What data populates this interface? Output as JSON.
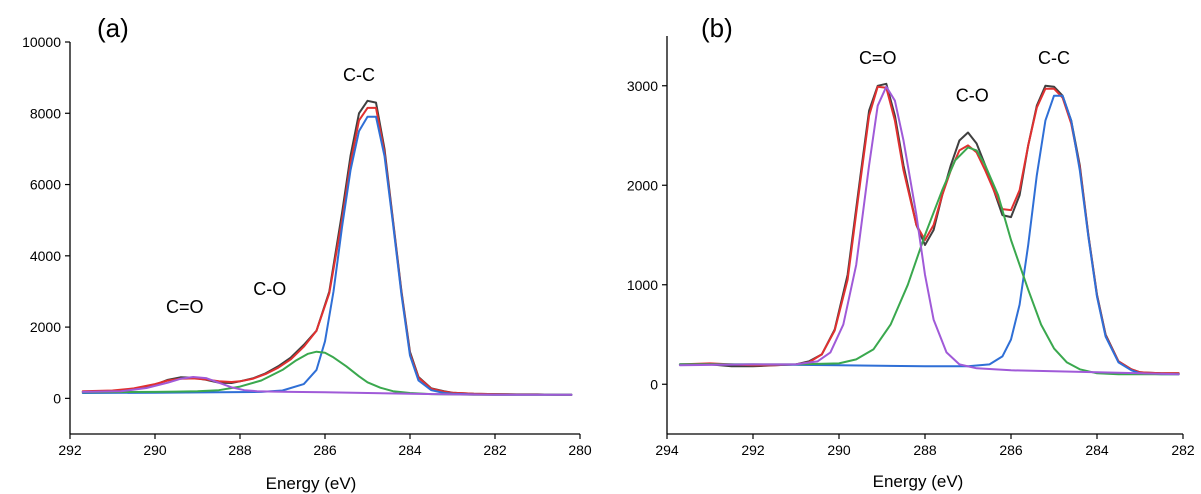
{
  "chart_data": [
    {
      "type": "line",
      "panel_label": "(a)",
      "xlabel": "Energy (eV)",
      "ylabel": "",
      "xlim": [
        292,
        280
      ],
      "ylim": [
        -1000,
        10000
      ],
      "x_reversed": true,
      "xticks": [
        292,
        290,
        288,
        286,
        284,
        282,
        280
      ],
      "yticks": [
        0,
        2000,
        4000,
        6000,
        8000,
        10000
      ],
      "annotations": [
        {
          "text": "C=O",
          "x": 289.3,
          "y": 2400
        },
        {
          "text": "C-O",
          "x": 287.3,
          "y": 2900
        },
        {
          "text": "C-C",
          "x": 285.2,
          "y": 8900
        }
      ],
      "series": [
        {
          "color": "#404040",
          "x": [
            291.7,
            291,
            290.5,
            290,
            289.7,
            289.4,
            289.1,
            288.8,
            288.5,
            288.2,
            288,
            287.7,
            287.4,
            287.1,
            286.8,
            286.5,
            286.2,
            285.9,
            285.6,
            285.4,
            285.2,
            285,
            284.8,
            284.6,
            284.4,
            284.2,
            284,
            283.8,
            283.5,
            283.2,
            283,
            282.5,
            282,
            281.5,
            281,
            280.5,
            280.2
          ],
          "y": [
            180,
            200,
            260,
            380,
            520,
            590,
            580,
            520,
            440,
            430,
            480,
            560,
            700,
            900,
            1150,
            1500,
            1900,
            3000,
            5200,
            6800,
            8000,
            8350,
            8300,
            7000,
            5000,
            3000,
            1300,
            600,
            280,
            200,
            160,
            130,
            120,
            110,
            110,
            100,
            100
          ]
        },
        {
          "color": "#e03030",
          "x": [
            291.7,
            291,
            290.5,
            290,
            289.7,
            289.4,
            289.1,
            288.8,
            288.5,
            288.2,
            288,
            287.7,
            287.4,
            287.1,
            286.8,
            286.5,
            286.2,
            285.9,
            285.6,
            285.4,
            285.2,
            285,
            284.8,
            284.6,
            284.4,
            284.2,
            284,
            283.8,
            283.5,
            283.2,
            283,
            282.5,
            282,
            281.5,
            281,
            280.5,
            280.2
          ],
          "y": [
            200,
            220,
            280,
            400,
            500,
            550,
            560,
            530,
            480,
            460,
            480,
            550,
            680,
            860,
            1100,
            1450,
            1900,
            2950,
            5000,
            6600,
            7800,
            8150,
            8150,
            6900,
            4950,
            2950,
            1250,
            580,
            270,
            190,
            160,
            130,
            120,
            110,
            110,
            100,
            100
          ]
        },
        {
          "color": "#2f6fd6",
          "x": [
            291.7,
            290,
            288.5,
            287.5,
            287,
            286.5,
            286.2,
            286,
            285.8,
            285.6,
            285.4,
            285.2,
            285,
            284.8,
            284.6,
            284.4,
            284.2,
            284,
            283.8,
            283.5,
            283.2,
            283,
            282.5,
            282,
            281,
            280.2
          ],
          "y": [
            150,
            160,
            170,
            180,
            220,
            400,
            800,
            1600,
            3000,
            4800,
            6400,
            7500,
            7900,
            7900,
            6800,
            4900,
            2900,
            1200,
            500,
            230,
            150,
            130,
            110,
            100,
            100,
            100
          ]
        },
        {
          "color": "#3aa84e",
          "x": [
            291.7,
            290,
            289.5,
            289,
            288.5,
            288,
            287.5,
            287,
            286.7,
            286.4,
            286.2,
            286,
            285.8,
            285.5,
            285.2,
            285,
            284.7,
            284.4,
            284,
            283.5,
            283,
            282.5,
            282,
            281,
            280.2
          ],
          "y": [
            170,
            180,
            190,
            200,
            230,
            330,
            500,
            800,
            1050,
            1250,
            1310,
            1280,
            1150,
            900,
            620,
            450,
            300,
            200,
            150,
            120,
            110,
            100,
            100,
            100,
            100
          ]
        },
        {
          "color": "#a05ad8",
          "x": [
            291.7,
            290.8,
            290.2,
            289.7,
            289.4,
            289.1,
            288.8,
            288.5,
            288.2,
            287.9,
            287.6,
            287.2,
            286.8,
            286,
            285,
            284,
            283,
            282,
            281,
            280.2
          ],
          "y": [
            180,
            200,
            290,
            440,
            550,
            600,
            570,
            440,
            310,
            230,
            200,
            190,
            180,
            170,
            150,
            130,
            110,
            100,
            100,
            100
          ]
        }
      ]
    },
    {
      "type": "line",
      "panel_label": "(b)",
      "xlabel": "Energy (eV)",
      "ylabel": "",
      "xlim": [
        294,
        282
      ],
      "ylim": [
        -500,
        3500
      ],
      "x_reversed": true,
      "xticks": [
        294,
        292,
        290,
        288,
        286,
        284,
        282
      ],
      "yticks": [
        0,
        1000,
        2000,
        3000
      ],
      "annotations": [
        {
          "text": "C=O",
          "x": 289.1,
          "y": 3220
        },
        {
          "text": "C-O",
          "x": 286.9,
          "y": 2840
        },
        {
          "text": "C-C",
          "x": 285.0,
          "y": 3220
        }
      ],
      "series": [
        {
          "color": "#404040",
          "x": [
            293.7,
            293,
            292.5,
            292,
            291.5,
            291,
            290.7,
            290.4,
            290.1,
            289.8,
            289.5,
            289.3,
            289.1,
            288.9,
            288.7,
            288.5,
            288.2,
            288,
            287.8,
            287.6,
            287.4,
            287.2,
            287,
            286.8,
            286.6,
            286.4,
            286.2,
            286,
            285.8,
            285.6,
            285.4,
            285.2,
            285,
            284.8,
            284.6,
            284.4,
            284.2,
            284,
            283.8,
            283.5,
            283.2,
            283,
            282.5,
            282.1
          ],
          "y": [
            200,
            200,
            180,
            180,
            190,
            200,
            230,
            300,
            550,
            1100,
            2100,
            2750,
            3000,
            3020,
            2700,
            2200,
            1600,
            1400,
            1550,
            1900,
            2200,
            2450,
            2530,
            2420,
            2200,
            1950,
            1700,
            1680,
            1900,
            2400,
            2800,
            3000,
            2990,
            2900,
            2650,
            2200,
            1500,
            900,
            500,
            230,
            150,
            120,
            110,
            110
          ]
        },
        {
          "color": "#e03030",
          "x": [
            293.7,
            293,
            292.5,
            292,
            291.5,
            291,
            290.7,
            290.4,
            290.1,
            289.8,
            289.5,
            289.3,
            289.1,
            288.9,
            288.7,
            288.5,
            288.2,
            288,
            287.8,
            287.6,
            287.4,
            287.2,
            287,
            286.8,
            286.6,
            286.4,
            286.2,
            286,
            285.8,
            285.6,
            285.4,
            285.2,
            285,
            284.8,
            284.6,
            284.4,
            284.2,
            284,
            283.8,
            283.5,
            283.2,
            283,
            282.5,
            282.1
          ],
          "y": [
            200,
            210,
            200,
            190,
            190,
            200,
            220,
            300,
            540,
            1050,
            2050,
            2700,
            2990,
            2980,
            2650,
            2150,
            1600,
            1450,
            1600,
            1900,
            2150,
            2350,
            2400,
            2330,
            2150,
            1950,
            1760,
            1750,
            1950,
            2400,
            2780,
            2970,
            2970,
            2880,
            2620,
            2180,
            1490,
            890,
            490,
            230,
            150,
            120,
            110,
            110
          ]
        },
        {
          "color": "#2f6fd6",
          "x": [
            293.7,
            292,
            290,
            288,
            287,
            286.5,
            286.2,
            286,
            285.8,
            285.6,
            285.4,
            285.2,
            285,
            284.8,
            284.6,
            284.4,
            284.2,
            284,
            283.8,
            283.5,
            283.2,
            283,
            282.5,
            282.1
          ],
          "y": [
            200,
            200,
            190,
            180,
            180,
            200,
            280,
            450,
            800,
            1400,
            2100,
            2650,
            2900,
            2900,
            2650,
            2150,
            1480,
            880,
            480,
            220,
            140,
            110,
            100,
            100
          ]
        },
        {
          "color": "#3aa84e",
          "x": [
            293.7,
            292,
            291,
            290,
            289.6,
            289.2,
            288.8,
            288.4,
            288,
            287.6,
            287.3,
            287,
            286.8,
            286.6,
            286.3,
            286,
            285.6,
            285.3,
            285,
            284.7,
            284.4,
            284,
            283.5,
            283,
            282.5,
            282.1
          ],
          "y": [
            200,
            200,
            200,
            210,
            250,
            350,
            600,
            1000,
            1500,
            1950,
            2250,
            2380,
            2350,
            2200,
            1900,
            1450,
            950,
            600,
            360,
            220,
            150,
            110,
            100,
            100,
            100,
            100
          ]
        },
        {
          "color": "#a05ad8",
          "x": [
            293.7,
            292,
            291,
            290.5,
            290.2,
            289.9,
            289.6,
            289.3,
            289.1,
            288.9,
            288.7,
            288.5,
            288.2,
            288,
            287.8,
            287.5,
            287.2,
            286.8,
            286,
            285,
            284,
            283,
            282.1
          ],
          "y": [
            190,
            200,
            200,
            230,
            320,
            600,
            1200,
            2200,
            2800,
            2990,
            2850,
            2450,
            1700,
            1100,
            650,
            320,
            200,
            160,
            140,
            130,
            120,
            110,
            100
          ]
        }
      ]
    }
  ]
}
